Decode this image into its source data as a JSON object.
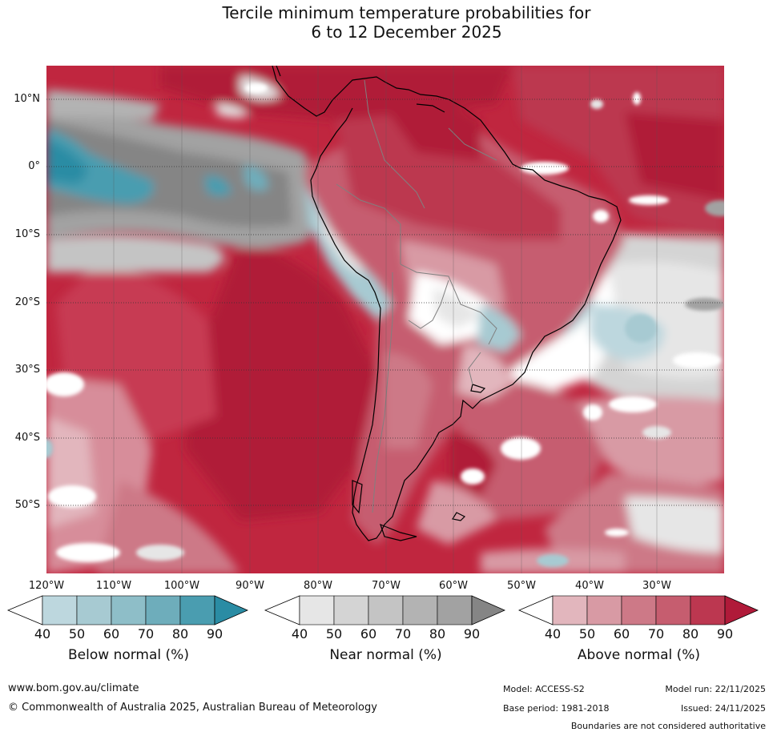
{
  "title": {
    "line1": "Tercile minimum temperature probabilities for",
    "line2": "6 to 12 December 2025"
  },
  "map": {
    "latitude_labels": [
      "10°N",
      "0°",
      "10°S",
      "20°S",
      "30°S",
      "40°S",
      "50°S"
    ],
    "longitude_labels": [
      "120°W",
      "110°W",
      "100°W",
      "90°W",
      "80°W",
      "70°W",
      "60°W",
      "50°W",
      "40°W",
      "30°W"
    ],
    "colors": {
      "ocean_base": "#c0263f",
      "gridline": "#333333",
      "coastline": "#000000",
      "border": "#808080"
    }
  },
  "colorbars": [
    {
      "name": "below",
      "title": "Below normal (%)",
      "ticks": [
        "40",
        "50",
        "60",
        "70",
        "80",
        "90"
      ],
      "colors": [
        "#bdd7de",
        "#a7cad2",
        "#8ebec8",
        "#6eadbb",
        "#4a9db0",
        "#2a8ca4"
      ]
    },
    {
      "name": "near",
      "title": "Near normal (%)",
      "ticks": [
        "40",
        "50",
        "60",
        "70",
        "80",
        "90"
      ],
      "colors": [
        "#e6e6e6",
        "#d4d4d4",
        "#c4c4c4",
        "#b3b3b3",
        "#a2a2a2",
        "#858585"
      ]
    },
    {
      "name": "above",
      "title": "Above normal (%)",
      "ticks": [
        "40",
        "50",
        "60",
        "70",
        "80",
        "90"
      ],
      "colors": [
        "#e2b6bd",
        "#d89aa4",
        "#cd7987",
        "#c65d6f",
        "#bc3750",
        "#b01a39"
      ]
    }
  ],
  "footer": {
    "website": "www.bom.gov.au/climate",
    "copyright": "© Commonwealth of Australia 2025, Australian Bureau of Meteorology",
    "model": "Model: ACCESS-S2",
    "model_run": "Model run: 22/11/2025",
    "base_period": "Base period: 1981-2018",
    "issued": "Issued: 24/11/2025",
    "disclaimer": "Boundaries are not considered authoritative"
  }
}
